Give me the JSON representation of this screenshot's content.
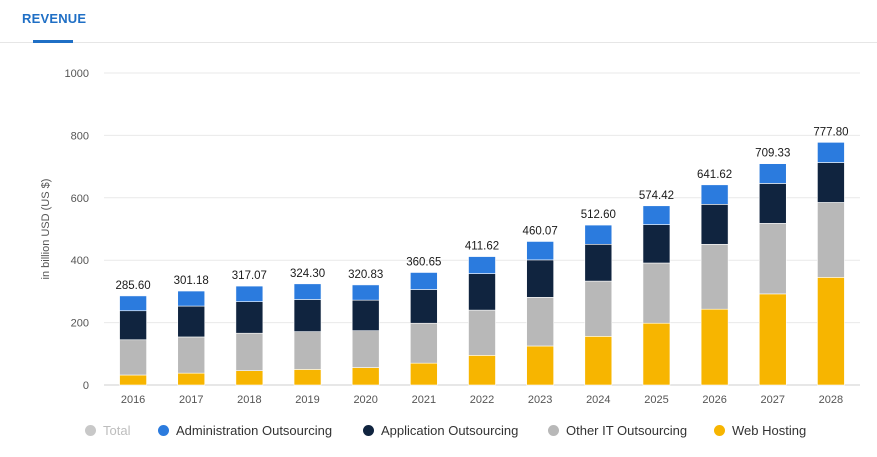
{
  "tabs": [
    {
      "label": "REVENUE",
      "active": true
    }
  ],
  "legend": [
    {
      "label": "Total",
      "color": "#c8c8c8",
      "inactive": true
    },
    {
      "label": "Administration Outsourcing",
      "color": "#2b7bde"
    },
    {
      "label": "Application Outsourcing",
      "color": "#10243f"
    },
    {
      "label": "Other IT Outsourcing",
      "color": "#b8b8b8"
    },
    {
      "label": "Web Hosting",
      "color": "#f7b500"
    }
  ],
  "chart_data": {
    "type": "bar",
    "stacked": true,
    "ylabel": "in billion USD (US $)",
    "ylim": [
      0,
      1000
    ],
    "yticks": [
      0,
      200,
      400,
      600,
      800,
      1000
    ],
    "grid": true,
    "legend_position": "bottom",
    "categories": [
      "2016",
      "2017",
      "2018",
      "2019",
      "2020",
      "2021",
      "2022",
      "2023",
      "2024",
      "2025",
      "2026",
      "2027",
      "2028"
    ],
    "totals": [
      "285.60",
      "301.18",
      "317.07",
      "324.30",
      "320.83",
      "360.65",
      "411.62",
      "460.07",
      "512.60",
      "574.42",
      "641.62",
      "709.33",
      "777.80"
    ],
    "series": [
      {
        "name": "Web Hosting",
        "color": "#f7b500",
        "values": [
          32,
          38,
          46,
          50,
          56,
          70,
          95,
          125,
          156,
          198,
          243,
          292,
          345
        ]
      },
      {
        "name": "Other IT Outsourcing",
        "color": "#b8b8b8",
        "values": [
          113,
          116,
          120,
          121,
          118,
          128,
          145,
          156,
          177,
          193,
          208,
          226,
          240
        ]
      },
      {
        "name": "Application Outsourcing",
        "color": "#10243f",
        "values": [
          93,
          99,
          101,
          103,
          98,
          108,
          117,
          120,
          118,
          123,
          128,
          128,
          128
        ]
      },
      {
        "name": "Administration Outsourcing",
        "color": "#2b7bde",
        "values": [
          47.6,
          48.18,
          50.07,
          50.3,
          48.83,
          54.65,
          54.62,
          59.07,
          61.6,
          60.42,
          62.62,
          63.33,
          64.8
        ]
      }
    ]
  }
}
